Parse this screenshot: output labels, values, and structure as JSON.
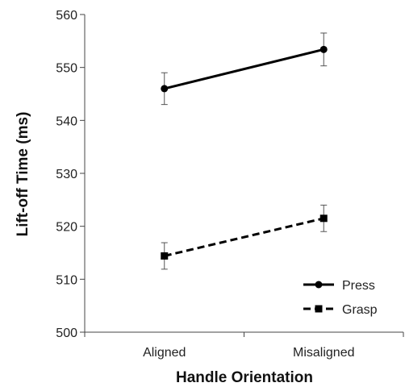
{
  "chart_data": {
    "type": "line",
    "title": "",
    "xlabel": "Handle Orientation",
    "ylabel": "Lift-off Time (ms)",
    "categories": [
      "Aligned",
      "Misaligned"
    ],
    "ylim": [
      500,
      560
    ],
    "yticks": [
      500,
      510,
      520,
      530,
      540,
      550,
      560
    ],
    "grid": false,
    "legend_position": "bottom-right",
    "series": [
      {
        "name": "Press",
        "values": [
          546.0,
          553.4
        ],
        "error": [
          3.0,
          3.1
        ],
        "line_style": "solid",
        "marker": "circle",
        "color": "#000000"
      },
      {
        "name": "Grasp",
        "values": [
          514.4,
          521.5
        ],
        "error": [
          2.5,
          2.5
        ],
        "line_style": "dashed",
        "marker": "square",
        "color": "#000000"
      }
    ]
  }
}
